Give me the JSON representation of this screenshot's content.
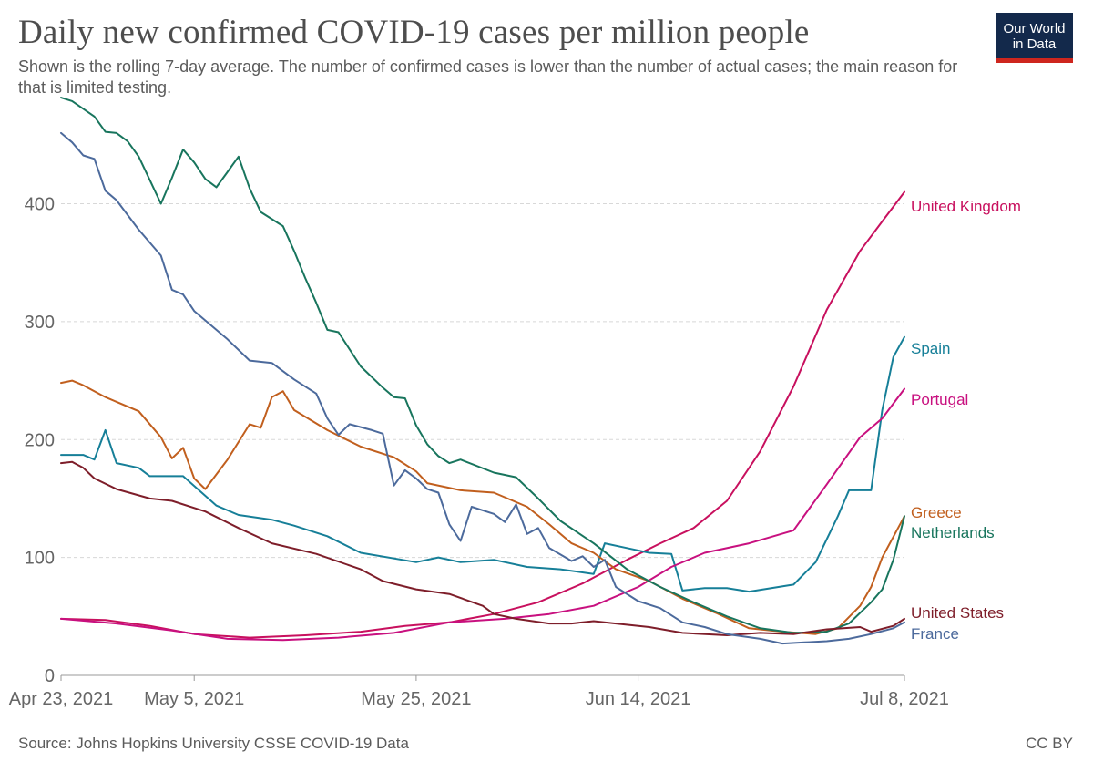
{
  "header": {
    "title": "Daily new confirmed COVID-19 cases per million people",
    "subtitle": "Shown is the rolling 7-day average. The number of confirmed cases is lower than the number of actual cases; the main reason for that is limited testing."
  },
  "logo": {
    "line1": "Our World",
    "line2": "in Data"
  },
  "footer": {
    "source": "Source: Johns Hopkins University CSSE COVID-19 Data",
    "license": "CC BY"
  },
  "chart_data": {
    "type": "line",
    "title": "Daily new confirmed COVID-19 cases per million people",
    "subtitle": "Shown is the rolling 7-day average. The number of confirmed cases is lower than the number of actual cases; the main reason for that is limited testing.",
    "xlabel": "",
    "ylabel": "",
    "x_range": [
      "2021-04-23",
      "2021-07-08"
    ],
    "ylim": [
      0,
      480
    ],
    "x_ticks": [
      {
        "date": "2021-04-23",
        "label": "Apr 23, 2021"
      },
      {
        "date": "2021-05-05",
        "label": "May 5, 2021"
      },
      {
        "date": "2021-05-25",
        "label": "May 25, 2021"
      },
      {
        "date": "2021-06-14",
        "label": "Jun 14, 2021"
      },
      {
        "date": "2021-07-08",
        "label": "Jul 8, 2021"
      }
    ],
    "y_ticks": [
      0,
      100,
      200,
      300,
      400
    ],
    "grid": "horizontal dashed",
    "legend": "right end labels",
    "series": [
      {
        "name": "United Kingdom",
        "color": "#c8105e",
        "points": [
          [
            "2021-04-23",
            48
          ],
          [
            "2021-04-27",
            47
          ],
          [
            "2021-05-01",
            42
          ],
          [
            "2021-05-05",
            35
          ],
          [
            "2021-05-10",
            32
          ],
          [
            "2021-05-15",
            34
          ],
          [
            "2021-05-20",
            37
          ],
          [
            "2021-05-24",
            42
          ],
          [
            "2021-05-28",
            45
          ],
          [
            "2021-06-01",
            52
          ],
          [
            "2021-06-05",
            62
          ],
          [
            "2021-06-09",
            78
          ],
          [
            "2021-06-13",
            98
          ],
          [
            "2021-06-16",
            112
          ],
          [
            "2021-06-19",
            125
          ],
          [
            "2021-06-22",
            148
          ],
          [
            "2021-06-25",
            190
          ],
          [
            "2021-06-28",
            245
          ],
          [
            "2021-07-01",
            310
          ],
          [
            "2021-07-04",
            360
          ],
          [
            "2021-07-06",
            385
          ],
          [
            "2021-07-08",
            410
          ]
        ]
      },
      {
        "name": "Spain",
        "color": "#167f98",
        "points": [
          [
            "2021-04-23",
            187
          ],
          [
            "2021-04-25",
            187
          ],
          [
            "2021-04-26",
            183
          ],
          [
            "2021-04-27",
            208
          ],
          [
            "2021-04-28",
            180
          ],
          [
            "2021-04-30",
            176
          ],
          [
            "2021-05-01",
            169
          ],
          [
            "2021-05-04",
            169
          ],
          [
            "2021-05-07",
            144
          ],
          [
            "2021-05-09",
            136
          ],
          [
            "2021-05-12",
            132
          ],
          [
            "2021-05-14",
            127
          ],
          [
            "2021-05-17",
            118
          ],
          [
            "2021-05-20",
            104
          ],
          [
            "2021-05-25",
            96
          ],
          [
            "2021-05-27",
            100
          ],
          [
            "2021-05-29",
            96
          ],
          [
            "2021-06-01",
            98
          ],
          [
            "2021-06-04",
            92
          ],
          [
            "2021-06-07",
            90
          ],
          [
            "2021-06-10",
            86
          ],
          [
            "2021-06-11",
            112
          ],
          [
            "2021-06-13",
            108
          ],
          [
            "2021-06-15",
            104
          ],
          [
            "2021-06-17",
            103
          ],
          [
            "2021-06-18",
            72
          ],
          [
            "2021-06-20",
            74
          ],
          [
            "2021-06-22",
            74
          ],
          [
            "2021-06-24",
            71
          ],
          [
            "2021-06-26",
            74
          ],
          [
            "2021-06-28",
            77
          ],
          [
            "2021-06-30",
            96
          ],
          [
            "2021-07-02",
            135
          ],
          [
            "2021-07-03",
            157
          ],
          [
            "2021-07-05",
            157
          ],
          [
            "2021-07-06",
            225
          ],
          [
            "2021-07-07",
            270
          ],
          [
            "2021-07-08",
            287
          ]
        ]
      },
      {
        "name": "Portugal",
        "color": "#c8107f",
        "points": [
          [
            "2021-04-23",
            48
          ],
          [
            "2021-04-28",
            44
          ],
          [
            "2021-05-03",
            38
          ],
          [
            "2021-05-08",
            31
          ],
          [
            "2021-05-13",
            30
          ],
          [
            "2021-05-18",
            32
          ],
          [
            "2021-05-23",
            36
          ],
          [
            "2021-05-28",
            45
          ],
          [
            "2021-06-02",
            48
          ],
          [
            "2021-06-06",
            52
          ],
          [
            "2021-06-10",
            59
          ],
          [
            "2021-06-14",
            75
          ],
          [
            "2021-06-17",
            92
          ],
          [
            "2021-06-20",
            104
          ],
          [
            "2021-06-24",
            112
          ],
          [
            "2021-06-28",
            123
          ],
          [
            "2021-07-01",
            162
          ],
          [
            "2021-07-04",
            202
          ],
          [
            "2021-07-06",
            218
          ],
          [
            "2021-07-08",
            243
          ]
        ]
      },
      {
        "name": "Greece",
        "color": "#c15f1e",
        "points": [
          [
            "2021-04-23",
            248
          ],
          [
            "2021-04-24",
            250
          ],
          [
            "2021-04-25",
            246
          ],
          [
            "2021-04-27",
            236
          ],
          [
            "2021-04-30",
            224
          ],
          [
            "2021-05-02",
            202
          ],
          [
            "2021-05-03",
            184
          ],
          [
            "2021-05-04",
            193
          ],
          [
            "2021-05-05",
            167
          ],
          [
            "2021-05-06",
            158
          ],
          [
            "2021-05-08",
            183
          ],
          [
            "2021-05-10",
            213
          ],
          [
            "2021-05-11",
            210
          ],
          [
            "2021-05-12",
            236
          ],
          [
            "2021-05-13",
            241
          ],
          [
            "2021-05-14",
            225
          ],
          [
            "2021-05-17",
            208
          ],
          [
            "2021-05-20",
            194
          ],
          [
            "2021-05-23",
            185
          ],
          [
            "2021-05-25",
            173
          ],
          [
            "2021-05-26",
            163
          ],
          [
            "2021-05-29",
            157
          ],
          [
            "2021-06-01",
            155
          ],
          [
            "2021-06-04",
            143
          ],
          [
            "2021-06-06",
            128
          ],
          [
            "2021-06-08",
            112
          ],
          [
            "2021-06-10",
            104
          ],
          [
            "2021-06-12",
            90
          ],
          [
            "2021-06-15",
            80
          ],
          [
            "2021-06-18",
            65
          ],
          [
            "2021-06-21",
            53
          ],
          [
            "2021-06-24",
            40
          ],
          [
            "2021-06-27",
            37
          ],
          [
            "2021-06-30",
            35
          ],
          [
            "2021-07-02",
            40
          ],
          [
            "2021-07-04",
            59
          ],
          [
            "2021-07-05",
            75
          ],
          [
            "2021-07-06",
            100
          ],
          [
            "2021-07-08",
            135
          ]
        ]
      },
      {
        "name": "Netherlands",
        "color": "#18755d",
        "points": [
          [
            "2021-04-23",
            490
          ],
          [
            "2021-04-24",
            487
          ],
          [
            "2021-04-26",
            474
          ],
          [
            "2021-04-27",
            461
          ],
          [
            "2021-04-28",
            460
          ],
          [
            "2021-04-29",
            453
          ],
          [
            "2021-04-30",
            440
          ],
          [
            "2021-05-01",
            420
          ],
          [
            "2021-05-02",
            400
          ],
          [
            "2021-05-03",
            422
          ],
          [
            "2021-05-04",
            446
          ],
          [
            "2021-05-05",
            435
          ],
          [
            "2021-05-06",
            421
          ],
          [
            "2021-05-07",
            414
          ],
          [
            "2021-05-08",
            427
          ],
          [
            "2021-05-09",
            440
          ],
          [
            "2021-05-10",
            413
          ],
          [
            "2021-05-11",
            393
          ],
          [
            "2021-05-13",
            381
          ],
          [
            "2021-05-14",
            360
          ],
          [
            "2021-05-15",
            337
          ],
          [
            "2021-05-16",
            316
          ],
          [
            "2021-05-17",
            293
          ],
          [
            "2021-05-18",
            291
          ],
          [
            "2021-05-20",
            262
          ],
          [
            "2021-05-22",
            244
          ],
          [
            "2021-05-23",
            236
          ],
          [
            "2021-05-24",
            235
          ],
          [
            "2021-05-25",
            212
          ],
          [
            "2021-05-26",
            196
          ],
          [
            "2021-05-27",
            186
          ],
          [
            "2021-05-28",
            180
          ],
          [
            "2021-05-29",
            183
          ],
          [
            "2021-06-01",
            172
          ],
          [
            "2021-06-03",
            168
          ],
          [
            "2021-06-05",
            150
          ],
          [
            "2021-06-07",
            131
          ],
          [
            "2021-06-10",
            112
          ],
          [
            "2021-06-13",
            90
          ],
          [
            "2021-06-16",
            75
          ],
          [
            "2021-06-19",
            62
          ],
          [
            "2021-06-22",
            50
          ],
          [
            "2021-06-25",
            40
          ],
          [
            "2021-06-28",
            36
          ],
          [
            "2021-07-01",
            37
          ],
          [
            "2021-07-03",
            44
          ],
          [
            "2021-07-05",
            62
          ],
          [
            "2021-07-06",
            73
          ],
          [
            "2021-07-07",
            98
          ],
          [
            "2021-07-08",
            135
          ]
        ]
      },
      {
        "name": "United States",
        "color": "#7e1e2a",
        "points": [
          [
            "2021-04-23",
            180
          ],
          [
            "2021-04-24",
            181
          ],
          [
            "2021-04-25",
            176
          ],
          [
            "2021-04-26",
            167
          ],
          [
            "2021-04-28",
            158
          ],
          [
            "2021-05-01",
            150
          ],
          [
            "2021-05-03",
            148
          ],
          [
            "2021-05-06",
            139
          ],
          [
            "2021-05-09",
            125
          ],
          [
            "2021-05-12",
            112
          ],
          [
            "2021-05-16",
            103
          ],
          [
            "2021-05-20",
            90
          ],
          [
            "2021-05-22",
            80
          ],
          [
            "2021-05-25",
            73
          ],
          [
            "2021-05-28",
            69
          ],
          [
            "2021-05-31",
            59
          ],
          [
            "2021-06-01",
            52
          ],
          [
            "2021-06-03",
            48
          ],
          [
            "2021-06-06",
            44
          ],
          [
            "2021-06-08",
            44
          ],
          [
            "2021-06-10",
            46
          ],
          [
            "2021-06-12",
            44
          ],
          [
            "2021-06-15",
            41
          ],
          [
            "2021-06-18",
            36
          ],
          [
            "2021-06-22",
            34
          ],
          [
            "2021-06-25",
            36
          ],
          [
            "2021-06-28",
            35
          ],
          [
            "2021-07-01",
            39
          ],
          [
            "2021-07-04",
            41
          ],
          [
            "2021-07-05",
            37
          ],
          [
            "2021-07-07",
            42
          ],
          [
            "2021-07-08",
            48
          ]
        ]
      },
      {
        "name": "France",
        "color": "#4c6a9c",
        "points": [
          [
            "2021-04-23",
            460
          ],
          [
            "2021-04-24",
            452
          ],
          [
            "2021-04-25",
            441
          ],
          [
            "2021-04-26",
            438
          ],
          [
            "2021-04-27",
            411
          ],
          [
            "2021-04-28",
            403
          ],
          [
            "2021-04-30",
            378
          ],
          [
            "2021-05-02",
            356
          ],
          [
            "2021-05-03",
            327
          ],
          [
            "2021-05-04",
            323
          ],
          [
            "2021-05-05",
            309
          ],
          [
            "2021-05-08",
            285
          ],
          [
            "2021-05-10",
            267
          ],
          [
            "2021-05-12",
            265
          ],
          [
            "2021-05-14",
            251
          ],
          [
            "2021-05-16",
            239
          ],
          [
            "2021-05-17",
            218
          ],
          [
            "2021-05-18",
            204
          ],
          [
            "2021-05-19",
            213
          ],
          [
            "2021-05-21",
            208
          ],
          [
            "2021-05-22",
            205
          ],
          [
            "2021-05-23",
            161
          ],
          [
            "2021-05-24",
            174
          ],
          [
            "2021-05-25",
            167
          ],
          [
            "2021-05-26",
            158
          ],
          [
            "2021-05-27",
            155
          ],
          [
            "2021-05-28",
            128
          ],
          [
            "2021-05-29",
            114
          ],
          [
            "2021-05-30",
            143
          ],
          [
            "2021-06-01",
            137
          ],
          [
            "2021-06-02",
            130
          ],
          [
            "2021-06-03",
            145
          ],
          [
            "2021-06-04",
            120
          ],
          [
            "2021-06-05",
            125
          ],
          [
            "2021-06-06",
            108
          ],
          [
            "2021-06-08",
            97
          ],
          [
            "2021-06-09",
            101
          ],
          [
            "2021-06-10",
            92
          ],
          [
            "2021-06-11",
            98
          ],
          [
            "2021-06-12",
            75
          ],
          [
            "2021-06-14",
            63
          ],
          [
            "2021-06-16",
            57
          ],
          [
            "2021-06-18",
            45
          ],
          [
            "2021-06-20",
            41
          ],
          [
            "2021-06-22",
            35
          ],
          [
            "2021-06-25",
            31
          ],
          [
            "2021-06-27",
            27
          ],
          [
            "2021-06-29",
            28
          ],
          [
            "2021-07-01",
            29
          ],
          [
            "2021-07-03",
            31
          ],
          [
            "2021-07-05",
            35
          ],
          [
            "2021-07-07",
            40
          ],
          [
            "2021-07-08",
            45
          ]
        ]
      }
    ]
  }
}
